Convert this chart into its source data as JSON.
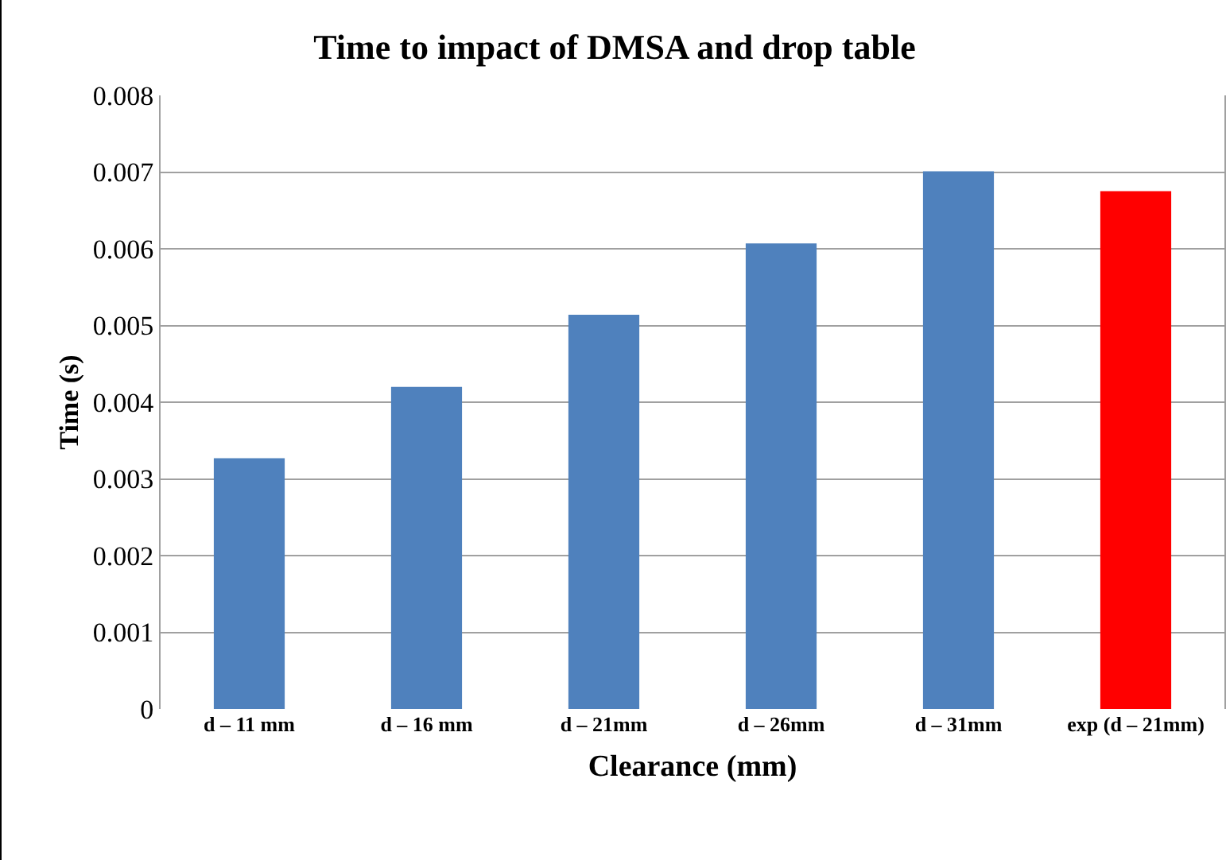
{
  "chart_data": {
    "type": "bar",
    "title": "Time to impact of DMSA and drop table",
    "xlabel": "Clearance (mm)",
    "ylabel": "Time (s)",
    "categories": [
      "d – 11 mm",
      "d – 16 mm",
      "d – 21mm",
      "d – 26mm",
      "d – 31mm",
      "exp (d – 21mm)"
    ],
    "values": [
      0.00327,
      0.0042,
      0.00514,
      0.00607,
      0.00701,
      0.00675
    ],
    "colors": [
      "#4f81bd",
      "#4f81bd",
      "#4f81bd",
      "#4f81bd",
      "#4f81bd",
      "#ff0000"
    ],
    "ylim": [
      0,
      0.008
    ],
    "yticks": [
      0,
      0.001,
      0.002,
      0.003,
      0.004,
      0.005,
      0.006,
      0.007,
      0.008
    ],
    "grid": "y"
  }
}
